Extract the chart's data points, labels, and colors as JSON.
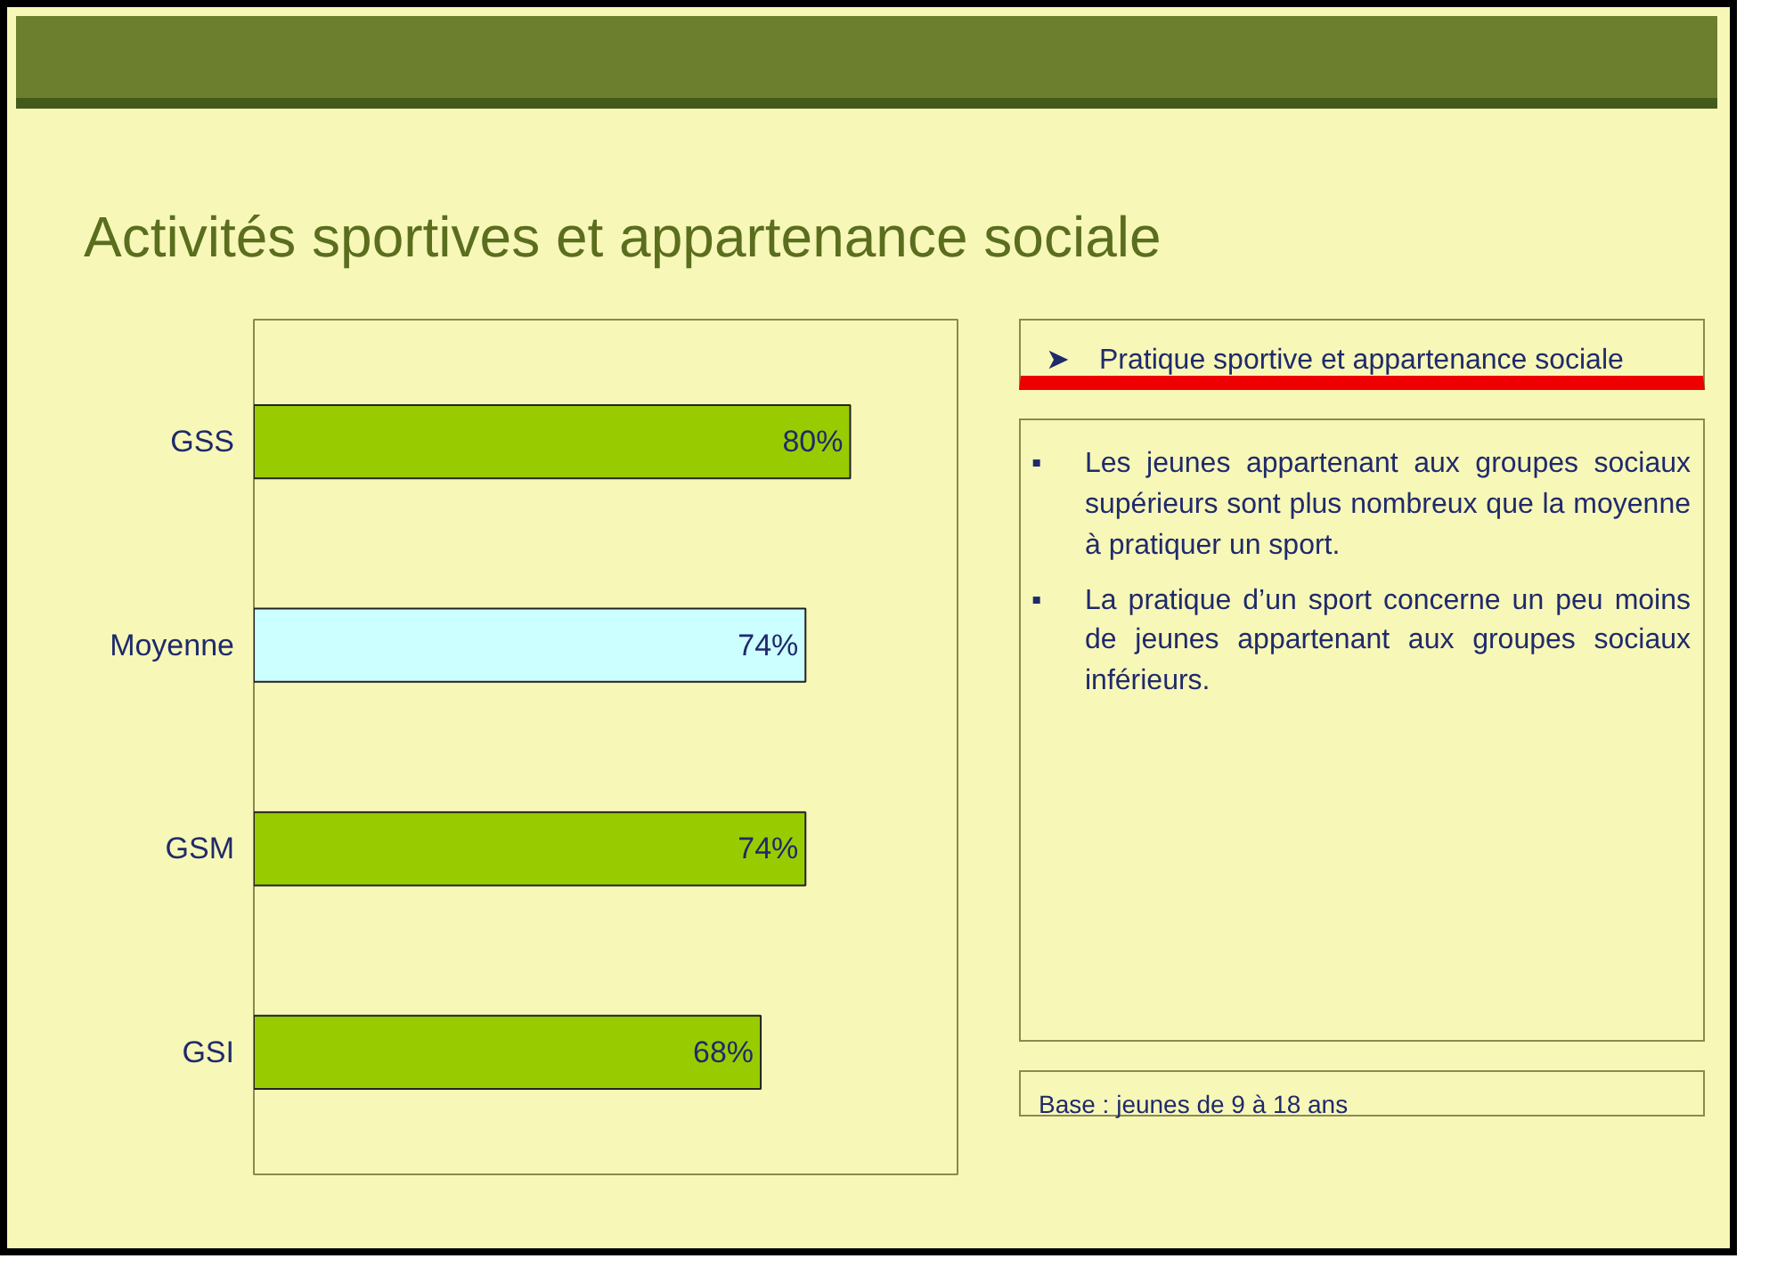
{
  "chart_data": {
    "type": "bar",
    "orientation": "horizontal",
    "title": "Activités sportives et appartenance sociale",
    "categories": [
      "GSS",
      "Moyenne",
      "GSM",
      "GSI"
    ],
    "values": [
      80,
      74,
      74,
      68
    ],
    "colors": [
      "#99cc00",
      "#ccffff",
      "#99cc00",
      "#99cc00"
    ],
    "value_labels": [
      "80%",
      "74%",
      "74%",
      "68%"
    ],
    "annotations": [
      "➤ Pratique sportive et appartenance sociale",
      "▪ Les jeunes appartenant aux groupes sociaux supérieurs sont plus nombreux que la moyenne à pratiquer un sport.",
      "▪ La pratique d’un sport concerne un peu moins de jeunes appartenant aux groupes sociaux inférieurs.",
      "Base : jeunes de 9 à 18 ans"
    ]
  }
}
